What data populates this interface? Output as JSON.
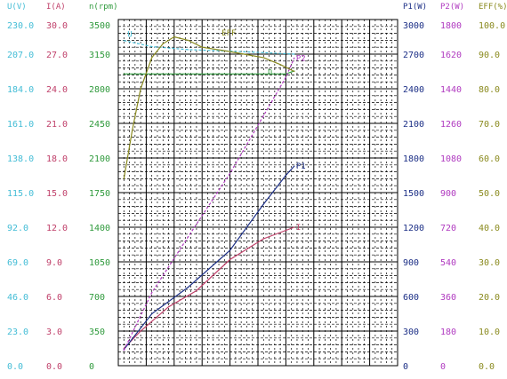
{
  "colors": {
    "U": "#44bdd6",
    "I": "#c0406a",
    "n": "#2f9a3c",
    "P1": "#1c2f86",
    "P2": "#b03ac0",
    "EFF": "#8a8a1e",
    "grid": "#000000",
    "grid_bg": "#ffffff"
  },
  "chart_data": {
    "type": "line",
    "title": "",
    "grid": true,
    "legend": "curve labels at line ends",
    "x": {
      "range": [
        0,
        100
      ],
      "ticks": []
    },
    "axes": [
      {
        "key": "U",
        "header": "U(V)",
        "side": "left",
        "min": 0,
        "max": 230,
        "ticks": [
          "0.0",
          "23.0",
          "46.0",
          "69.0",
          "92.0",
          "115.0",
          "138.0",
          "161.0",
          "184.0",
          "207.0",
          "230.0"
        ]
      },
      {
        "key": "I",
        "header": "I(A)",
        "side": "left",
        "min": 0,
        "max": 30,
        "ticks": [
          "0.0",
          "3.0",
          "6.0",
          "9.0",
          "12.0",
          "15.0",
          "18.0",
          "21.0",
          "24.0",
          "27.0",
          "30.0"
        ]
      },
      {
        "key": "n",
        "header": "n(rpm)",
        "side": "left",
        "min": 0,
        "max": 3500,
        "ticks": [
          "0",
          "350",
          "700",
          "1050",
          "1400",
          "1750",
          "2100",
          "2450",
          "2800",
          "3150",
          "3500"
        ]
      },
      {
        "key": "P1",
        "header": "P1(W)",
        "side": "right",
        "min": 0,
        "max": 3000,
        "ticks": [
          "0",
          "300",
          "600",
          "900",
          "1200",
          "1500",
          "1800",
          "2100",
          "2400",
          "2700",
          "3000"
        ]
      },
      {
        "key": "P2",
        "header": "P2(W)",
        "side": "right",
        "min": 0,
        "max": 1800,
        "ticks": [
          "0",
          "180",
          "360",
          "540",
          "720",
          "900",
          "1080",
          "1260",
          "1440",
          "1620",
          "1800"
        ]
      },
      {
        "key": "EFF",
        "header": "EFF(%)",
        "side": "right",
        "min": 0,
        "max": 100,
        "ticks": [
          "0.0",
          "10.0",
          "20.0",
          "30.0",
          "40.0",
          "50.0",
          "60.0",
          "70.0",
          "80.0",
          "90.0",
          "100.0"
        ]
      }
    ],
    "series": [
      {
        "name": "U",
        "axis": "U",
        "x": [
          2,
          12,
          25,
          40,
          52,
          63
        ],
        "y": [
          216,
          212,
          210,
          209,
          208,
          207
        ]
      },
      {
        "name": "I",
        "axis": "I",
        "x": [
          2,
          8,
          18,
          28,
          40,
          52,
          63
        ],
        "y": [
          1.5,
          3.0,
          5.1,
          6.5,
          9.2,
          11.0,
          12.0
        ]
      },
      {
        "name": "n",
        "axis": "n",
        "x": [
          2,
          12,
          25,
          38,
          50,
          60,
          63
        ],
        "y": [
          2950,
          2950,
          2950,
          2950,
          2950,
          2950,
          2980
        ]
      },
      {
        "name": "P1",
        "axis": "P1",
        "x": [
          2,
          12,
          25,
          40,
          52,
          60,
          63
        ],
        "y": [
          140,
          450,
          680,
          1000,
          1400,
          1650,
          1730
        ]
      },
      {
        "name": "P2",
        "axis": "P2",
        "x": [
          2,
          12,
          25,
          40,
          52,
          60,
          63
        ],
        "y": [
          80,
          380,
          670,
          1000,
          1300,
          1500,
          1600
        ]
      },
      {
        "name": "EFF",
        "axis": "EFF",
        "x": [
          2,
          5,
          8,
          12,
          16,
          20,
          25,
          30,
          38,
          45,
          52,
          58,
          63
        ],
        "y": [
          54,
          68,
          80,
          89,
          93,
          95,
          94,
          92,
          91,
          90,
          89,
          87,
          85
        ]
      }
    ],
    "line_labels": [
      "U",
      "I",
      "n",
      "P1",
      "P2",
      "EFF"
    ]
  }
}
